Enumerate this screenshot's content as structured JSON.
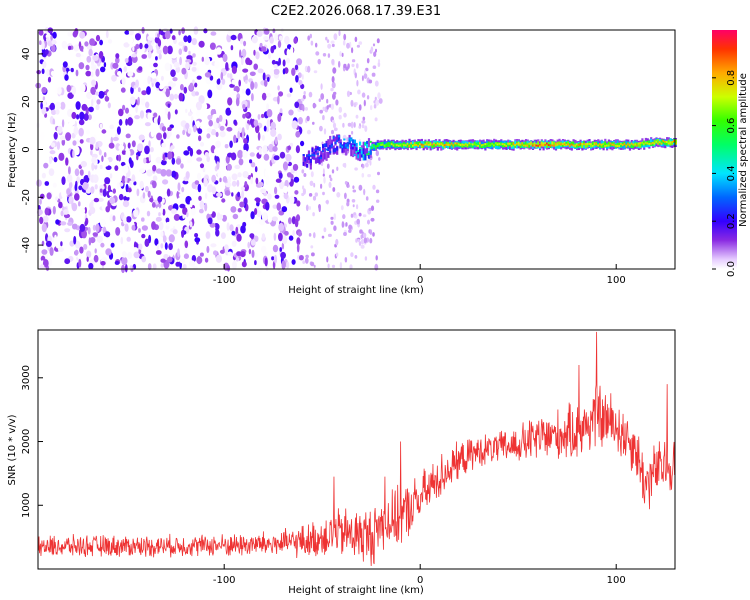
{
  "title": "C2E2.2026.068.17.39.E31",
  "chart_data": [
    {
      "type": "heatmap",
      "name": "spectrogram",
      "xlabel": "Height of straight line (km)",
      "ylabel": "Frequency (Hz)",
      "xlim": [
        -195,
        130
      ],
      "ylim": [
        -50,
        50
      ],
      "xticks": [
        -100,
        0,
        100
      ],
      "yticks": [
        -40,
        -20,
        0,
        20,
        40
      ],
      "colorbar": {
        "label": "Normalized spectral amplitude",
        "range": [
          0,
          1
        ],
        "ticks": [
          "0.0",
          "0.2",
          "0.4",
          "0.6",
          "0.8"
        ]
      },
      "noise_region": {
        "x": [
          -195,
          -60
        ],
        "y": [
          -50,
          50
        ],
        "amplitude": [
          0.0,
          0.2
        ]
      },
      "signal_trace": {
        "x": [
          -60,
          -55,
          -50,
          -45,
          -40,
          -35,
          -30,
          -25,
          -20,
          -10,
          0,
          10,
          20,
          30,
          40,
          50,
          60,
          70,
          80,
          90,
          100,
          110,
          120,
          130
        ],
        "freq": [
          -5,
          -3,
          -1,
          2,
          3,
          1,
          -1,
          1,
          2,
          2,
          2,
          2,
          2,
          2,
          2,
          2,
          2,
          2,
          2,
          2,
          2,
          2,
          3,
          3
        ],
        "amplitude": [
          0.25,
          0.3,
          0.3,
          0.3,
          0.35,
          0.4,
          0.5,
          0.6,
          0.7,
          0.75,
          0.85,
          0.85,
          0.8,
          0.75,
          0.75,
          0.85,
          0.9,
          0.9,
          0.85,
          0.8,
          0.8,
          0.8,
          0.8,
          0.85
        ]
      }
    },
    {
      "type": "line",
      "name": "snr",
      "xlabel": "Height of straight line (km)",
      "ylabel": "SNR (10 * v/v)",
      "xlim": [
        -195,
        130
      ],
      "ylim": [
        0,
        3750
      ],
      "xticks": [
        -100,
        0,
        100
      ],
      "yticks": [
        1000,
        2000,
        3000
      ],
      "color": "#ee3333",
      "series": [
        {
          "name": "SNR",
          "x": [
            -195,
            -170,
            -140,
            -110,
            -90,
            -70,
            -55,
            -45,
            -35,
            -25,
            -20,
            -15,
            -10,
            -5,
            0,
            10,
            20,
            30,
            40,
            50,
            60,
            70,
            80,
            85,
            90,
            100,
            110,
            115,
            120,
            130
          ],
          "mean": [
            350,
            360,
            360,
            370,
            380,
            400,
            450,
            560,
            550,
            500,
            700,
            750,
            820,
            950,
            1100,
            1450,
            1700,
            1850,
            1900,
            1950,
            2050,
            2100,
            2150,
            2250,
            2400,
            2250,
            1900,
            1300,
            1550,
            1650
          ],
          "noise": [
            180,
            180,
            180,
            180,
            200,
            220,
            300,
            380,
            450,
            500,
            500,
            480,
            480,
            460,
            420,
            380,
            300,
            260,
            260,
            320,
            400,
            420,
            480,
            500,
            560,
            500,
            450,
            520,
            480,
            450
          ],
          "peaks": [
            {
              "x": -44,
              "y": 1450
            },
            {
              "x": -18,
              "y": 1450
            },
            {
              "x": -10,
              "y": 2000
            },
            {
              "x": 90,
              "y": 3720
            },
            {
              "x": 81,
              "y": 3200
            },
            {
              "x": 126,
              "y": 2900
            }
          ]
        }
      ]
    }
  ]
}
